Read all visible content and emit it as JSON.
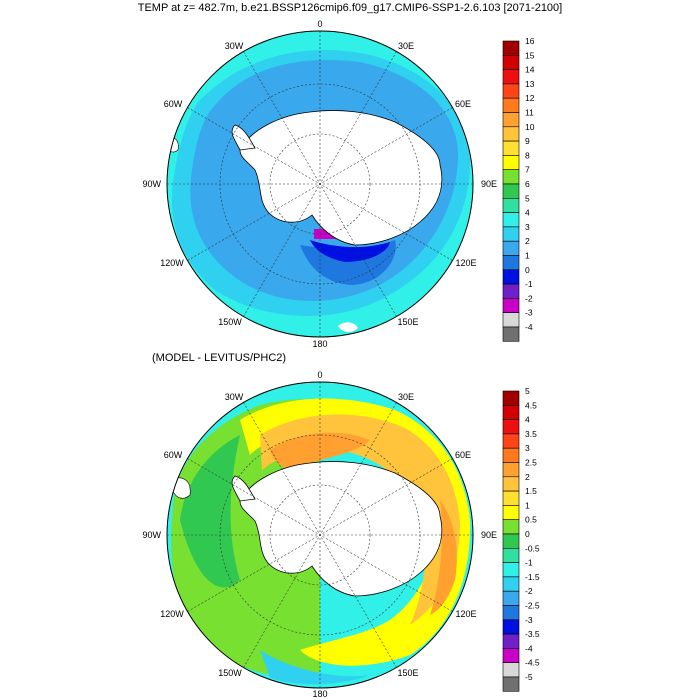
{
  "title": "TEMP at z= 482.7m, b.e21.BSSP126cmip6.f09_g17.CMIP6-SSP1-2.6.103 [2071-2100]",
  "subtitle": "(MODEL - LEVITUS/PHC2)",
  "longitude_labels": [
    "0",
    "30E",
    "60E",
    "90E",
    "120E",
    "150E",
    "180",
    "150W",
    "120W",
    "90W",
    "60W",
    "30W"
  ],
  "colorbar_top": {
    "labels": [
      "16",
      "15",
      "14",
      "13",
      "12",
      "11",
      "10",
      "9",
      "8",
      "7",
      "6",
      "5",
      "4",
      "3",
      "2",
      "1",
      "0",
      "-1",
      "-2",
      "-3",
      "-4"
    ],
    "colors": [
      "#a00000",
      "#d20000",
      "#ee1010",
      "#ff4418",
      "#ff7a1c",
      "#ffa030",
      "#ffc43c",
      "#ffe030",
      "#ffff00",
      "#78e030",
      "#30c850",
      "#30e0a0",
      "#30f0e8",
      "#30d0f0",
      "#3aa8ec",
      "#1f78e0",
      "#0010e0",
      "#7020c8",
      "#c800c8",
      "#d8d8d8",
      "#707070"
    ]
  },
  "colorbar_bottom": {
    "labels": [
      "5",
      "4.5",
      "4",
      "3.5",
      "3",
      "2.5",
      "2",
      "1.5",
      "1",
      "0.5",
      "0",
      "-0.5",
      "-1",
      "-1.5",
      "-2",
      "-2.5",
      "-3",
      "-3.5",
      "-4",
      "-4.5",
      "-5"
    ],
    "colors": [
      "#a00000",
      "#d20000",
      "#ee1010",
      "#ff4418",
      "#ff7a1c",
      "#ffa030",
      "#ffc43c",
      "#ffe030",
      "#ffff00",
      "#78e030",
      "#30c850",
      "#30e0a0",
      "#30f0e8",
      "#30d0f0",
      "#3aa8ec",
      "#1f78e0",
      "#0010e0",
      "#7020c8",
      "#c800c8",
      "#d8d8d8",
      "#707070"
    ]
  },
  "map_colors": {
    "land": "#ffffff",
    "top_ocean_outer": "#30f0e8",
    "top_ocean_mid": "#30d0f0",
    "top_ocean_inner": "#3aa8ec",
    "top_deep": "#1f78e0",
    "top_dark": "#0010e0",
    "top_magenta": "#c800c8",
    "bot_outer": "#30d0f0",
    "bot_green": "#78e030",
    "bot_green2": "#30c850",
    "bot_yellow": "#ffff00",
    "bot_orange": "#ffc43c",
    "bot_darkorange": "#ffa030",
    "bot_cyan": "#30f0e8"
  }
}
